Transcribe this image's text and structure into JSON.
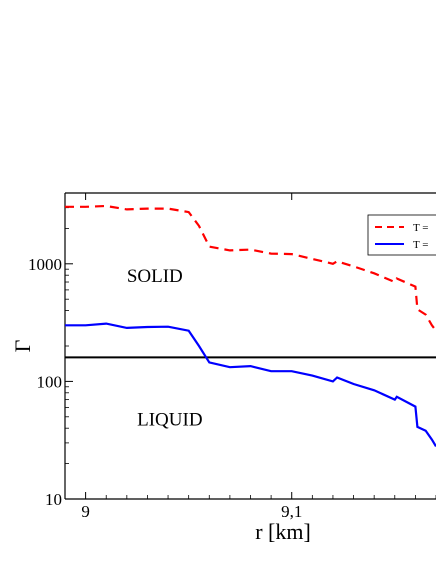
{
  "chart_data": {
    "type": "line",
    "title": "",
    "xlabel": "r [km]",
    "ylabel": "Γ",
    "y_scale": "log",
    "xlim": [
      8.99,
      9.17
    ],
    "ylim": [
      10,
      4000
    ],
    "x_ticks": [
      {
        "value": 9.0,
        "label": "9"
      },
      {
        "value": 9.1,
        "label": "9,1"
      }
    ],
    "y_ticks": [
      {
        "value": 10,
        "label": "10"
      },
      {
        "value": 100,
        "label": "100"
      },
      {
        "value": 1000,
        "label": "1000"
      }
    ],
    "annotations": [
      {
        "text": "SOLID",
        "x": 9.02,
        "y": 700
      },
      {
        "text": "LIQUID",
        "x": 9.025,
        "y": 42
      }
    ],
    "hline": {
      "y": 160,
      "color": "#000000"
    },
    "legend": {
      "placement": "top-right"
    },
    "series": [
      {
        "name": "T =",
        "color": "#ff0000",
        "dash": "dashed",
        "points": [
          [
            8.99,
            3050
          ],
          [
            9.0,
            3050
          ],
          [
            9.01,
            3100
          ],
          [
            9.02,
            2900
          ],
          [
            9.03,
            2950
          ],
          [
            9.04,
            2950
          ],
          [
            9.05,
            2750
          ],
          [
            9.055,
            2100
          ],
          [
            9.06,
            1400
          ],
          [
            9.07,
            1300
          ],
          [
            9.08,
            1320
          ],
          [
            9.09,
            1220
          ],
          [
            9.1,
            1210
          ],
          [
            9.11,
            1100
          ],
          [
            9.12,
            1000
          ],
          [
            9.122,
            1050
          ],
          [
            9.13,
            950
          ],
          [
            9.14,
            830
          ],
          [
            9.15,
            700
          ],
          [
            9.151,
            750
          ],
          [
            9.16,
            640
          ],
          [
            9.161,
            410
          ],
          [
            9.165,
            370
          ],
          [
            9.168,
            300
          ],
          [
            9.17,
            270
          ]
        ]
      },
      {
        "name": "T =",
        "color": "#0000ff",
        "dash": "solid",
        "points": [
          [
            8.99,
            300
          ],
          [
            9.0,
            300
          ],
          [
            9.01,
            310
          ],
          [
            9.02,
            285
          ],
          [
            9.03,
            290
          ],
          [
            9.04,
            292
          ],
          [
            9.05,
            270
          ],
          [
            9.055,
            200
          ],
          [
            9.06,
            145
          ],
          [
            9.07,
            132
          ],
          [
            9.08,
            135
          ],
          [
            9.09,
            122
          ],
          [
            9.1,
            122
          ],
          [
            9.11,
            112
          ],
          [
            9.12,
            100
          ],
          [
            9.122,
            108
          ],
          [
            9.13,
            95
          ],
          [
            9.14,
            84
          ],
          [
            9.15,
            70
          ],
          [
            9.151,
            74
          ],
          [
            9.16,
            61
          ],
          [
            9.161,
            41
          ],
          [
            9.165,
            38
          ],
          [
            9.168,
            32
          ],
          [
            9.17,
            28
          ]
        ]
      }
    ]
  }
}
